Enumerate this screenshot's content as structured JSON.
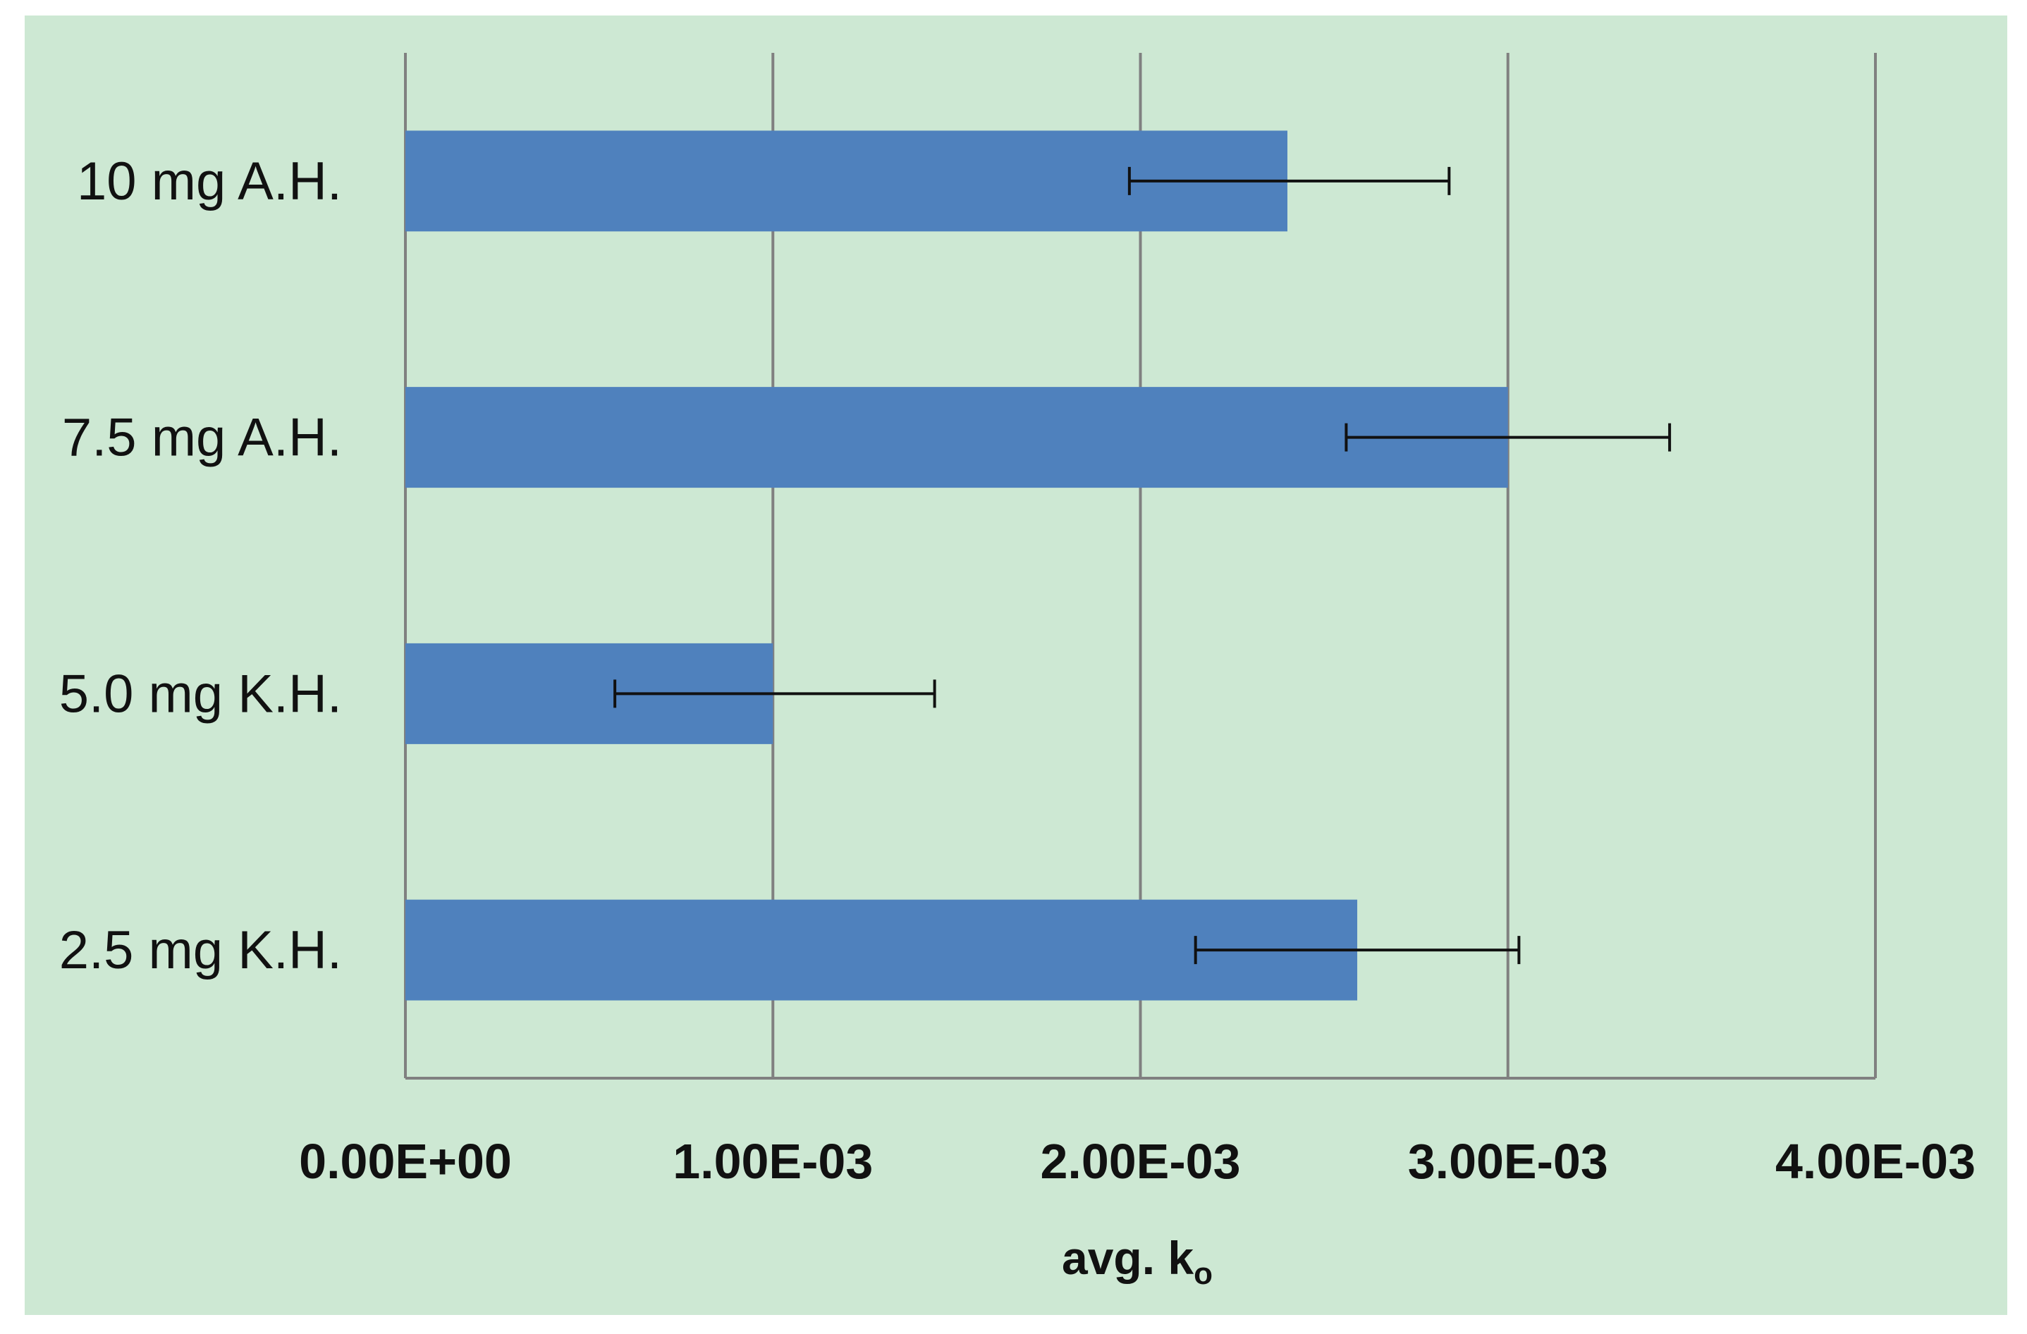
{
  "chart_data": {
    "type": "bar",
    "orientation": "horizontal",
    "categories": [
      "10 mg A.H.",
      "7.5 mg A.H.",
      "5.0 mg K.H.",
      "2.5 mg K.H."
    ],
    "values": [
      0.0024,
      0.003,
      0.001,
      0.00259
    ],
    "error_low": [
      0.00197,
      0.00256,
      0.00057,
      0.00215
    ],
    "error_high": [
      0.00284,
      0.00344,
      0.00144,
      0.00303
    ],
    "xlim": [
      0,
      0.004
    ],
    "xticks": [
      0,
      0.001,
      0.002,
      0.003,
      0.004
    ],
    "xtick_labels": [
      "0.00E+00",
      "1.00E-03",
      "2.00E-03",
      "3.00E-03",
      "4.00E-03"
    ],
    "xlabel": "avg. k",
    "xlabel_subscript": "o",
    "grid": true,
    "legend": "none",
    "colors": {
      "bar": "#4f81bd",
      "background": "#cde8d3",
      "grid": "#808080",
      "error_bar": "#111111"
    }
  }
}
